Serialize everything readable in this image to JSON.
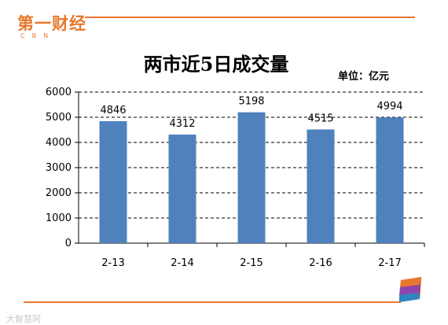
{
  "logo": {
    "main": "第一财经",
    "sub": "CBN"
  },
  "title": "两市近5日成交量",
  "unit": "单位：亿元",
  "watermark": "大智慧阿",
  "colors": {
    "bar": "#4f81bd",
    "accent": "#e8772e",
    "grid": "#000000"
  },
  "chart_data": {
    "type": "bar",
    "title": "两市近5日成交量",
    "unit": "单位：亿元",
    "categories": [
      "2-13",
      "2-14",
      "2-15",
      "2-16",
      "2-17"
    ],
    "values": [
      4846,
      4312,
      5198,
      4515,
      4994
    ],
    "data_labels": [
      "4846",
      "4312",
      "5198",
      "4515",
      "4994"
    ],
    "yticks": [
      0,
      1000,
      2000,
      3000,
      4000,
      5000,
      6000
    ],
    "ylim": [
      0,
      6000
    ],
    "grid": true,
    "legend": "none"
  }
}
